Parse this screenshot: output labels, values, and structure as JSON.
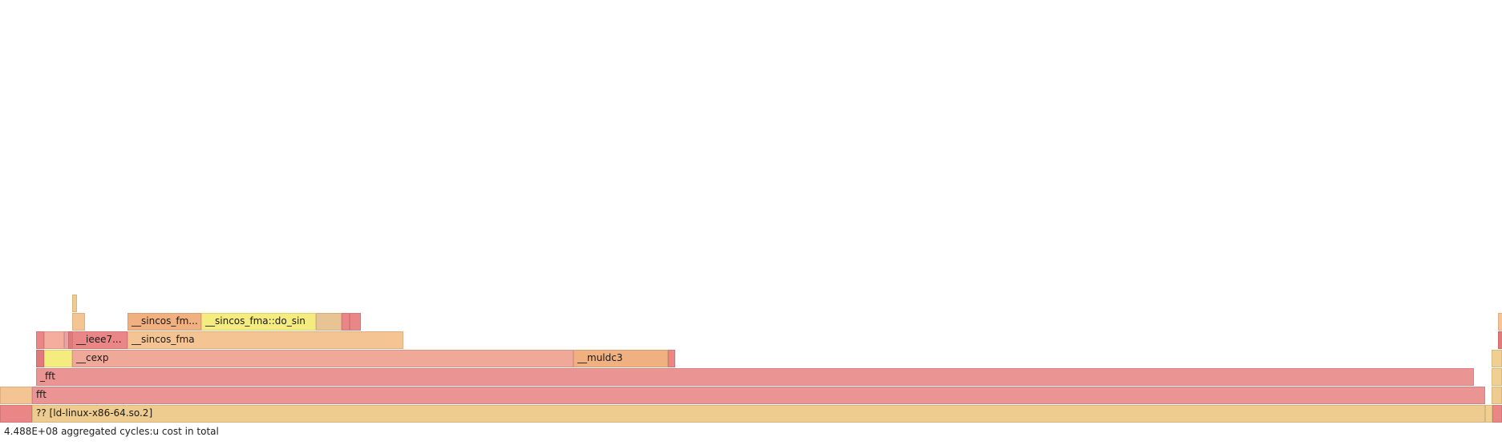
{
  "colors": {
    "salmon": "#f0a898",
    "pink": "#eb9494",
    "peach": "#f5c493",
    "yellow": "#f5ec80",
    "red": "#eb8686",
    "tan": "#e8c394",
    "orange": "#f0b080",
    "gold": "#eecb8e",
    "amber": "#f0d090",
    "light_salmon": "#f5ae9d",
    "muted": "#eaa3a0",
    "dark_red": "#e07a7a"
  },
  "frames": [
    {
      "label": "?? [ld-linux-x86-64.so.2]",
      "color": "gold"
    },
    {
      "label": "fft",
      "color": "pink"
    },
    {
      "label": "_fft",
      "color": "pink"
    },
    {
      "label": "__cexp",
      "color": "salmon"
    },
    {
      "label": "__muldc3",
      "color": "orange"
    },
    {
      "label": "__ieee7...",
      "color": "red"
    },
    {
      "label": "__sincos_fma",
      "color": "peach"
    },
    {
      "label": "__sincos_fm...",
      "color": "orange"
    },
    {
      "label": "__sincos_fma::do_sin",
      "color": "yellow"
    },
    {
      "label": "",
      "color": "peach"
    },
    {
      "label": "",
      "color": "red"
    },
    {
      "label": "",
      "color": "gold"
    },
    {
      "label": "",
      "color": "amber"
    },
    {
      "label": "",
      "color": "muted"
    },
    {
      "label": "",
      "color": "yellow"
    },
    {
      "label": "",
      "color": "tan"
    },
    {
      "label": "",
      "color": "light_salmon"
    },
    {
      "label": "",
      "color": "dark_red"
    }
  ],
  "status_text": "4.488E+08 aggregated cycles:u cost in total"
}
